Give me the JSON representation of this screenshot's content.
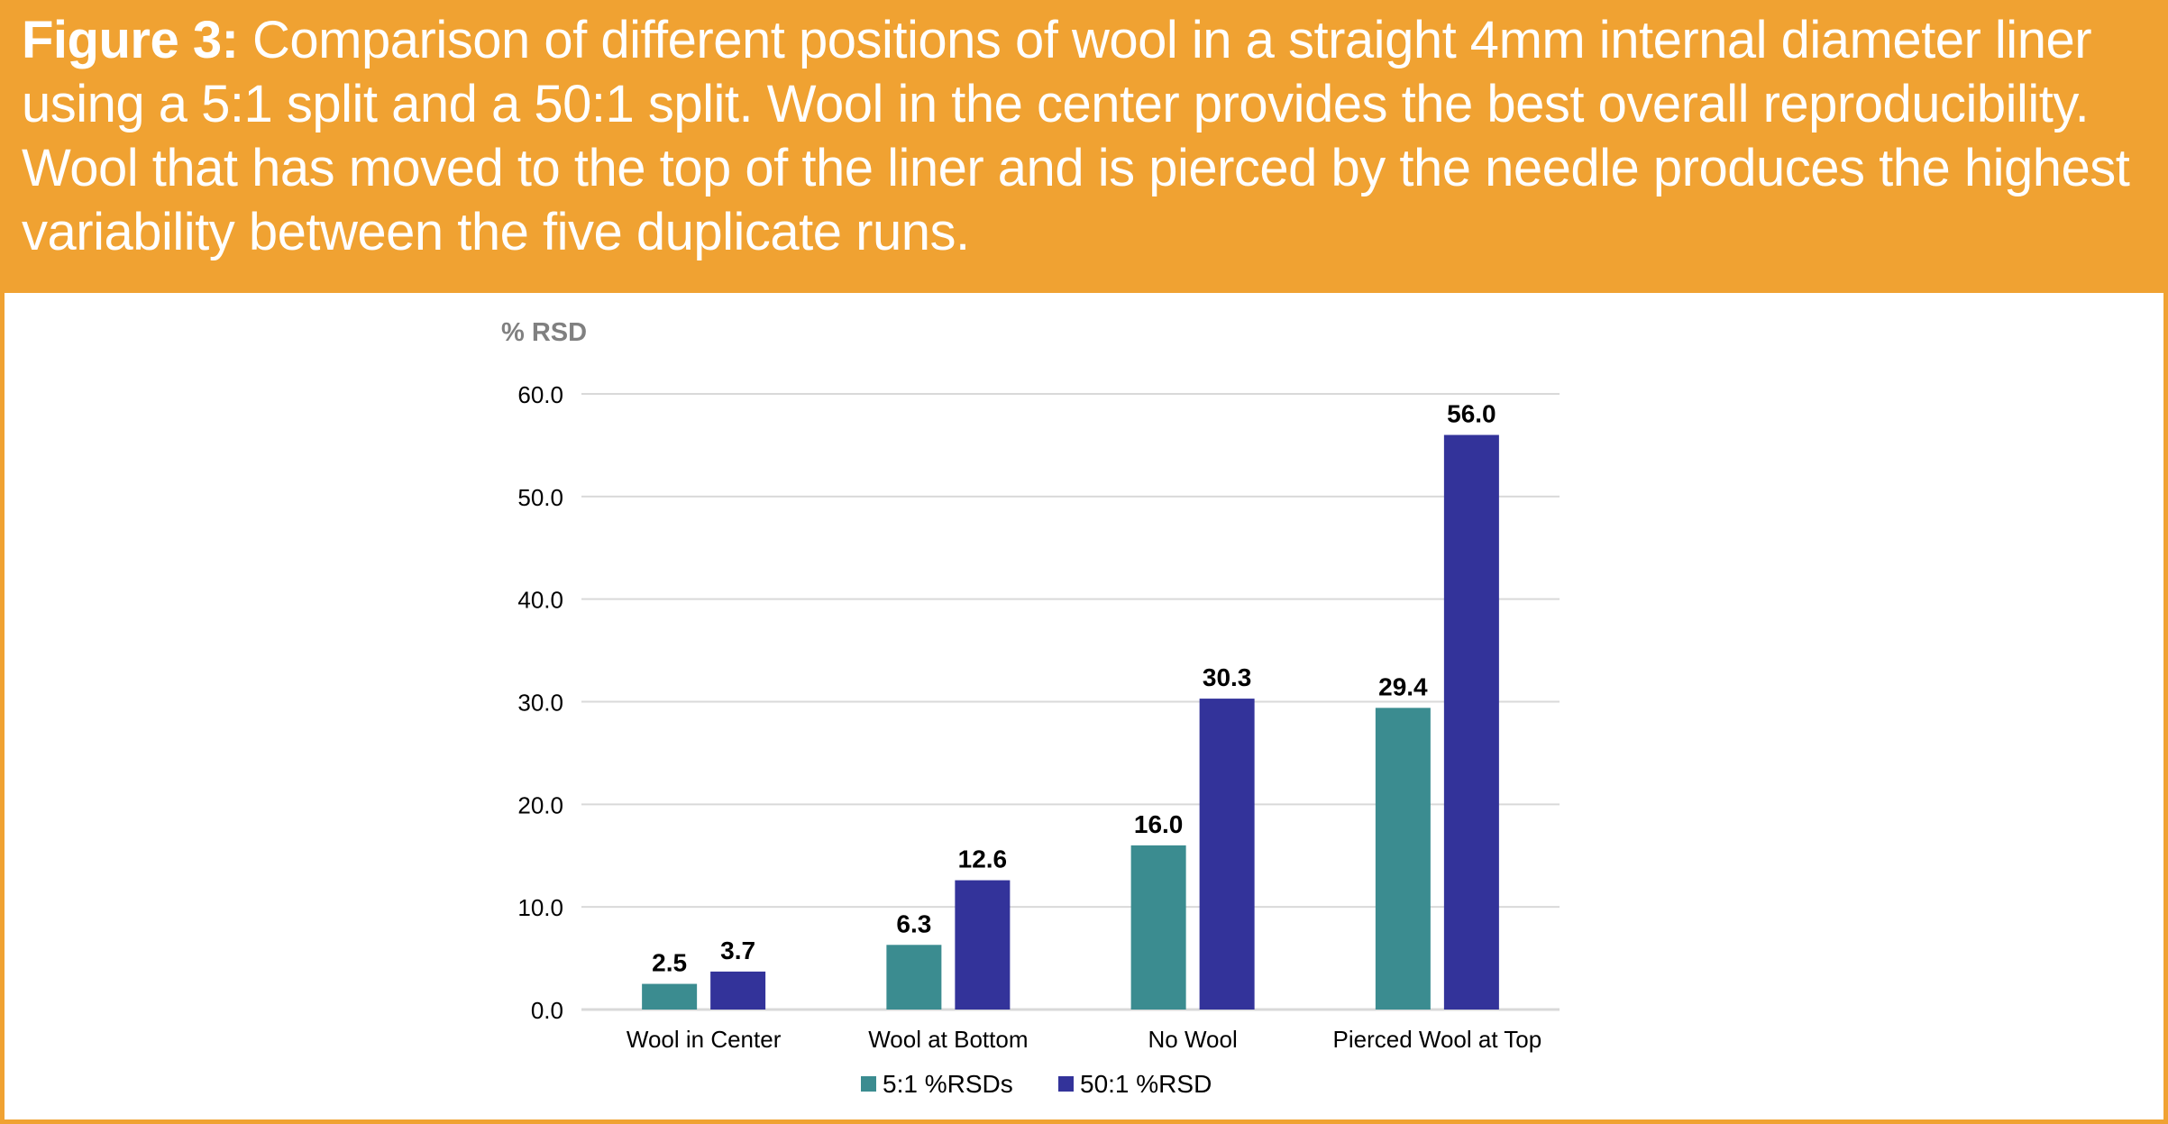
{
  "caption": {
    "label": "Figure 3:",
    "text": " Comparison of different positions of wool in a straight 4mm internal diameter liner using a 5:1 split and a 50:1 split. Wool in the center provides the best overall reproducibility. Wool that has moved to the top of the liner and is pierced by the needle produces the highest variability between the five duplicate runs."
  },
  "colors": {
    "banner": "#F0A232",
    "series_5_1": "#3B8C90",
    "series_50_1": "#33339A",
    "grid": "#D9D9D9",
    "axis_text": "#000000",
    "unit_text": "#808080"
  },
  "chart_data": {
    "type": "bar",
    "title": "",
    "ylabel": "% RSD",
    "xlabel": "",
    "ylim": [
      0,
      60
    ],
    "yticks": [
      "0.0",
      "10.0",
      "20.0",
      "30.0",
      "40.0",
      "50.0",
      "60.0"
    ],
    "grid": true,
    "legend_position": "bottom",
    "categories": [
      "Wool in Center",
      "Wool at Bottom",
      "No Wool",
      "Pierced Wool at Top"
    ],
    "series": [
      {
        "name": "5:1 %RSDs",
        "values": [
          2.5,
          6.3,
          16.0,
          29.4
        ],
        "labels": [
          "2.5",
          "6.3",
          "16.0",
          "29.4"
        ]
      },
      {
        "name": "50:1 %RSD",
        "values": [
          3.7,
          12.6,
          30.3,
          56.0
        ],
        "labels": [
          "3.7",
          "12.6",
          "30.3",
          "56.0"
        ]
      }
    ]
  }
}
